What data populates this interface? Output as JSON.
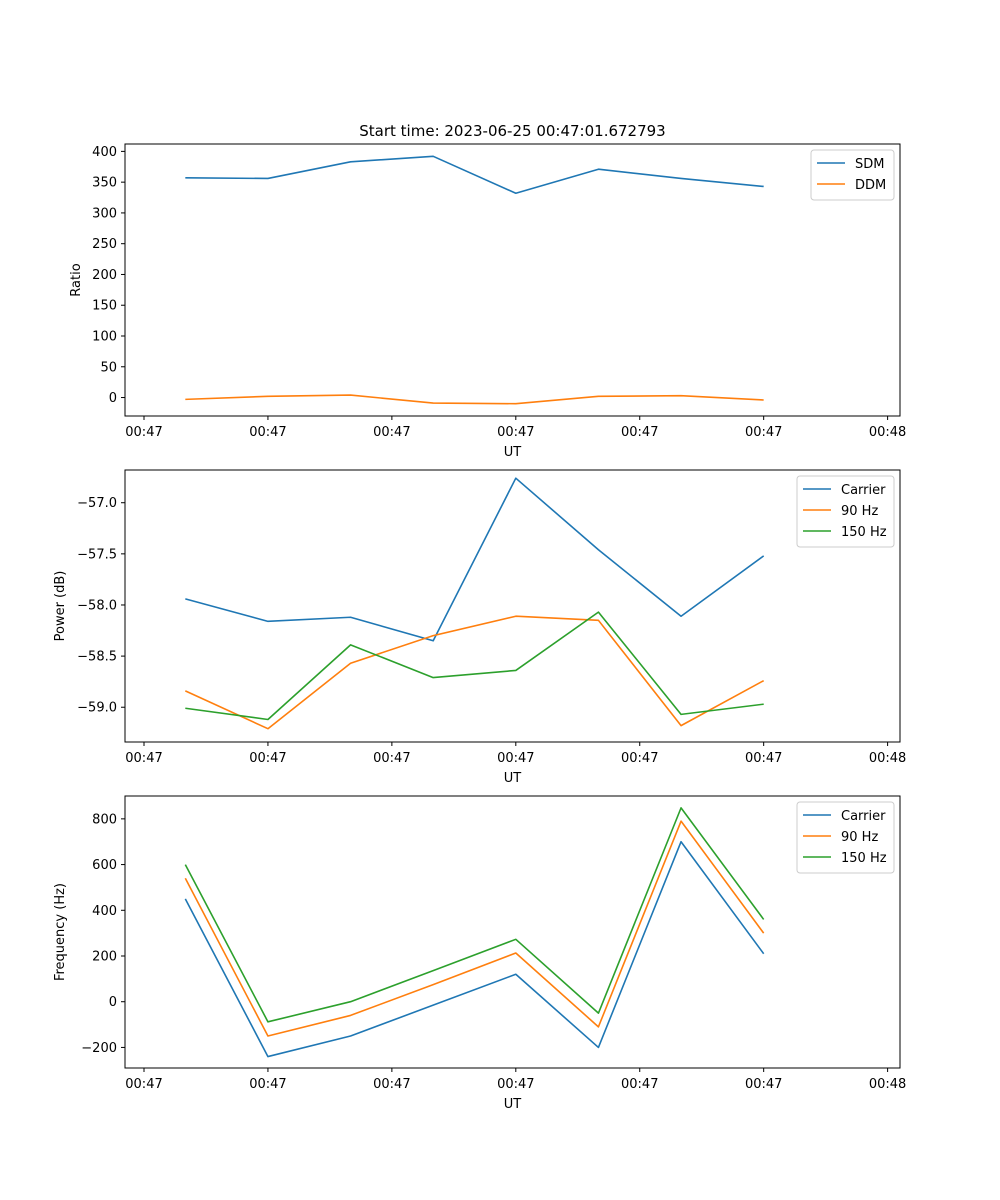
{
  "figure": {
    "title": "Start time: 2023-06-25 00:47:01.672793"
  },
  "chart_data": [
    {
      "type": "line",
      "xlabel": "UT",
      "ylabel": "Ratio",
      "xticks": [
        "00:47",
        "00:47",
        "00:47",
        "00:47",
        "00:47",
        "00:47",
        "00:48"
      ],
      "yticks": [
        0,
        50,
        100,
        150,
        200,
        250,
        300,
        350,
        400
      ],
      "ylim": [
        -30,
        412
      ],
      "grid": false,
      "legend": "top-right",
      "x": [
        1,
        2,
        3,
        4,
        5,
        6,
        7,
        8
      ],
      "series": [
        {
          "name": "SDM",
          "color": "#1f77b4",
          "values": [
            357,
            356,
            383,
            392,
            332,
            371,
            356,
            343
          ]
        },
        {
          "name": "DDM",
          "color": "#ff7f0e",
          "values": [
            -3,
            2,
            4,
            -9,
            -10,
            2,
            3,
            -4
          ]
        }
      ]
    },
    {
      "type": "line",
      "xlabel": "UT",
      "ylabel": "Power (dB)",
      "xticks": [
        "00:47",
        "00:47",
        "00:47",
        "00:47",
        "00:47",
        "00:47",
        "00:48"
      ],
      "yticks": [
        -59.0,
        -58.5,
        -58.0,
        -57.5,
        -57.0
      ],
      "ytick_labels": [
        "−59.0",
        "−58.5",
        "−58.0",
        "−57.5",
        "−57.0"
      ],
      "ylim": [
        -59.34,
        -56.68
      ],
      "grid": false,
      "legend": "top-right",
      "x": [
        1,
        2,
        3,
        4,
        5,
        6,
        7,
        8
      ],
      "series": [
        {
          "name": "Carrier",
          "color": "#1f77b4",
          "values": [
            -57.94,
            -58.16,
            -58.12,
            -58.35,
            -56.76,
            -57.46,
            -58.11,
            -57.52
          ]
        },
        {
          "name": "90 Hz",
          "color": "#ff7f0e",
          "values": [
            -58.84,
            -59.21,
            -58.57,
            -58.3,
            -58.11,
            -58.15,
            -59.18,
            -58.74
          ]
        },
        {
          "name": "150 Hz",
          "color": "#2ca02c",
          "values": [
            -59.01,
            -59.12,
            -58.39,
            -58.71,
            -58.64,
            -58.07,
            -59.07,
            -58.97
          ]
        }
      ]
    },
    {
      "type": "line",
      "xlabel": "UT",
      "ylabel": "Frequency (Hz)",
      "xticks": [
        "00:47",
        "00:47",
        "00:47",
        "00:47",
        "00:47",
        "00:47",
        "00:48"
      ],
      "yticks": [
        -200,
        0,
        200,
        400,
        600,
        800
      ],
      "ytick_labels": [
        "−200",
        "0",
        "200",
        "400",
        "600",
        "800"
      ],
      "ylim": [
        -290,
        900
      ],
      "grid": false,
      "legend": "top-right",
      "x": [
        1,
        2,
        3,
        4,
        5,
        6,
        7,
        8
      ],
      "series": [
        {
          "name": "Carrier",
          "color": "#1f77b4",
          "values": [
            450,
            -240,
            -150,
            -15,
            120,
            -200,
            700,
            210
          ]
        },
        {
          "name": "90 Hz",
          "color": "#ff7f0e",
          "values": [
            540,
            -150,
            -60,
            75,
            213,
            -110,
            790,
            300
          ]
        },
        {
          "name": "150 Hz",
          "color": "#2ca02c",
          "values": [
            600,
            -88,
            0,
            136,
            273,
            -50,
            848,
            360
          ]
        }
      ]
    }
  ]
}
